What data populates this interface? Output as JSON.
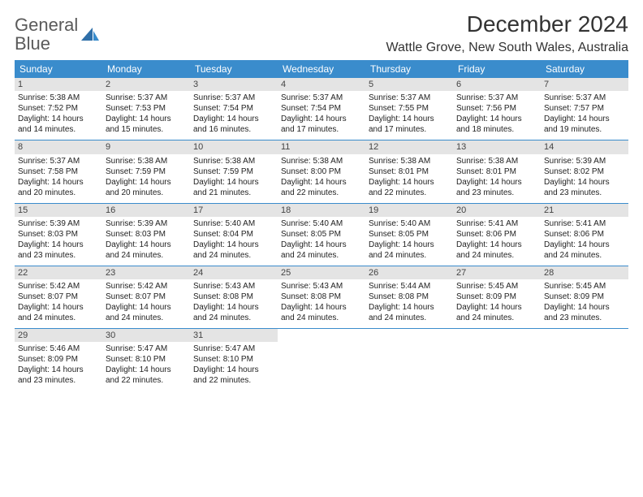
{
  "logo": {
    "word1": "General",
    "word2": "Blue"
  },
  "header": {
    "title": "December 2024",
    "location": "Wattle Grove, New South Wales, Australia"
  },
  "styling": {
    "header_bg": "#3a8ccc",
    "header_text": "#ffffff",
    "daynum_bg": "#e4e4e4",
    "row_border": "#3a8ccc",
    "body_text": "#222222",
    "title_fontsize": 28,
    "location_fontsize": 16,
    "th_fontsize": 12,
    "cell_fontsize": 10,
    "page_bg": "#ffffff",
    "columns": 7
  },
  "weekdays": [
    "Sunday",
    "Monday",
    "Tuesday",
    "Wednesday",
    "Thursday",
    "Friday",
    "Saturday"
  ],
  "weeks": [
    [
      {
        "n": "1",
        "sr": "5:38 AM",
        "ss": "7:52 PM",
        "dl": "14 hours and 14 minutes."
      },
      {
        "n": "2",
        "sr": "5:37 AM",
        "ss": "7:53 PM",
        "dl": "14 hours and 15 minutes."
      },
      {
        "n": "3",
        "sr": "5:37 AM",
        "ss": "7:54 PM",
        "dl": "14 hours and 16 minutes."
      },
      {
        "n": "4",
        "sr": "5:37 AM",
        "ss": "7:54 PM",
        "dl": "14 hours and 17 minutes."
      },
      {
        "n": "5",
        "sr": "5:37 AM",
        "ss": "7:55 PM",
        "dl": "14 hours and 17 minutes."
      },
      {
        "n": "6",
        "sr": "5:37 AM",
        "ss": "7:56 PM",
        "dl": "14 hours and 18 minutes."
      },
      {
        "n": "7",
        "sr": "5:37 AM",
        "ss": "7:57 PM",
        "dl": "14 hours and 19 minutes."
      }
    ],
    [
      {
        "n": "8",
        "sr": "5:37 AM",
        "ss": "7:58 PM",
        "dl": "14 hours and 20 minutes."
      },
      {
        "n": "9",
        "sr": "5:38 AM",
        "ss": "7:59 PM",
        "dl": "14 hours and 20 minutes."
      },
      {
        "n": "10",
        "sr": "5:38 AM",
        "ss": "7:59 PM",
        "dl": "14 hours and 21 minutes."
      },
      {
        "n": "11",
        "sr": "5:38 AM",
        "ss": "8:00 PM",
        "dl": "14 hours and 22 minutes."
      },
      {
        "n": "12",
        "sr": "5:38 AM",
        "ss": "8:01 PM",
        "dl": "14 hours and 22 minutes."
      },
      {
        "n": "13",
        "sr": "5:38 AM",
        "ss": "8:01 PM",
        "dl": "14 hours and 23 minutes."
      },
      {
        "n": "14",
        "sr": "5:39 AM",
        "ss": "8:02 PM",
        "dl": "14 hours and 23 minutes."
      }
    ],
    [
      {
        "n": "15",
        "sr": "5:39 AM",
        "ss": "8:03 PM",
        "dl": "14 hours and 23 minutes."
      },
      {
        "n": "16",
        "sr": "5:39 AM",
        "ss": "8:03 PM",
        "dl": "14 hours and 24 minutes."
      },
      {
        "n": "17",
        "sr": "5:40 AM",
        "ss": "8:04 PM",
        "dl": "14 hours and 24 minutes."
      },
      {
        "n": "18",
        "sr": "5:40 AM",
        "ss": "8:05 PM",
        "dl": "14 hours and 24 minutes."
      },
      {
        "n": "19",
        "sr": "5:40 AM",
        "ss": "8:05 PM",
        "dl": "14 hours and 24 minutes."
      },
      {
        "n": "20",
        "sr": "5:41 AM",
        "ss": "8:06 PM",
        "dl": "14 hours and 24 minutes."
      },
      {
        "n": "21",
        "sr": "5:41 AM",
        "ss": "8:06 PM",
        "dl": "14 hours and 24 minutes."
      }
    ],
    [
      {
        "n": "22",
        "sr": "5:42 AM",
        "ss": "8:07 PM",
        "dl": "14 hours and 24 minutes."
      },
      {
        "n": "23",
        "sr": "5:42 AM",
        "ss": "8:07 PM",
        "dl": "14 hours and 24 minutes."
      },
      {
        "n": "24",
        "sr": "5:43 AM",
        "ss": "8:08 PM",
        "dl": "14 hours and 24 minutes."
      },
      {
        "n": "25",
        "sr": "5:43 AM",
        "ss": "8:08 PM",
        "dl": "14 hours and 24 minutes."
      },
      {
        "n": "26",
        "sr": "5:44 AM",
        "ss": "8:08 PM",
        "dl": "14 hours and 24 minutes."
      },
      {
        "n": "27",
        "sr": "5:45 AM",
        "ss": "8:09 PM",
        "dl": "14 hours and 24 minutes."
      },
      {
        "n": "28",
        "sr": "5:45 AM",
        "ss": "8:09 PM",
        "dl": "14 hours and 23 minutes."
      }
    ],
    [
      {
        "n": "29",
        "sr": "5:46 AM",
        "ss": "8:09 PM",
        "dl": "14 hours and 23 minutes."
      },
      {
        "n": "30",
        "sr": "5:47 AM",
        "ss": "8:10 PM",
        "dl": "14 hours and 22 minutes."
      },
      {
        "n": "31",
        "sr": "5:47 AM",
        "ss": "8:10 PM",
        "dl": "14 hours and 22 minutes."
      },
      null,
      null,
      null,
      null
    ]
  ],
  "labels": {
    "sunrise": "Sunrise:",
    "sunset": "Sunset:",
    "daylight": "Daylight:"
  }
}
